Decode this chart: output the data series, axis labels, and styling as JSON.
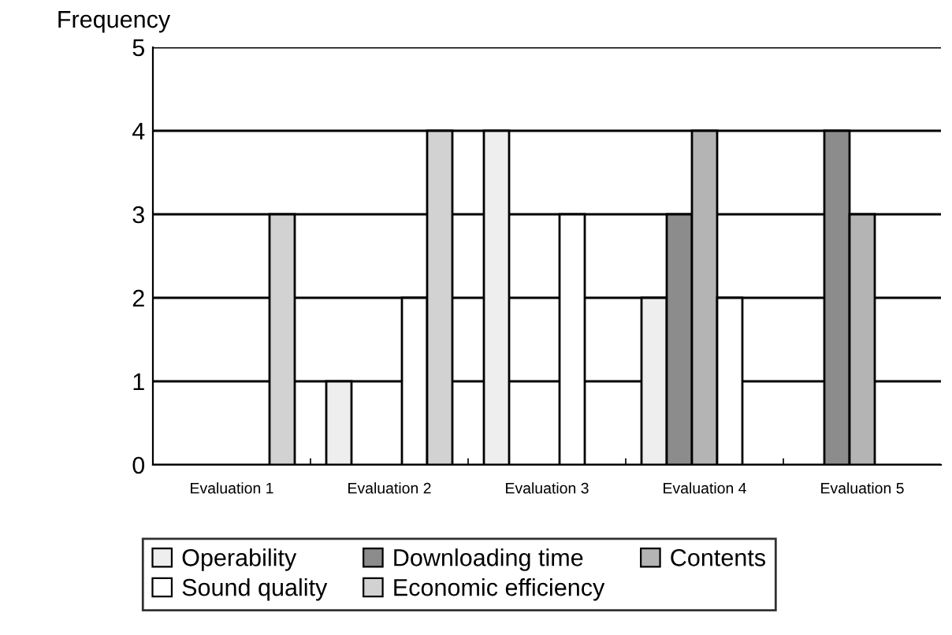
{
  "chart_data": {
    "type": "bar",
    "ylabel": "Frequency",
    "categories": [
      "Evaluation 1",
      "Evaluation 2",
      "Evaluation 3",
      "Evaluation 4",
      "Evaluation 5"
    ],
    "series": [
      {
        "name": "Operability",
        "color": "#eeeeee",
        "values": [
          0,
          1,
          4,
          2,
          0
        ]
      },
      {
        "name": "Downloading time",
        "color": "#8c8c8c",
        "values": [
          0,
          0,
          0,
          3,
          4
        ]
      },
      {
        "name": "Contents",
        "color": "#b4b4b4",
        "values": [
          0,
          0,
          0,
          4,
          3
        ]
      },
      {
        "name": "Sound quality",
        "color": "#ffffff",
        "values": [
          0,
          2,
          3,
          2,
          0
        ]
      },
      {
        "name": "Economic efficiency",
        "color": "#d2d2d2",
        "values": [
          3,
          4,
          0,
          0,
          0
        ]
      }
    ],
    "ylim": [
      0,
      5
    ],
    "yticks": [
      0,
      1,
      2,
      3,
      4,
      5
    ],
    "grid": "y",
    "legend": "bottom"
  }
}
